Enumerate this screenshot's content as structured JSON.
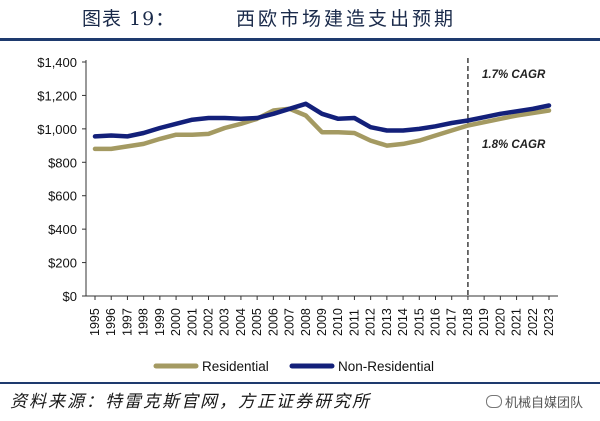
{
  "figure": {
    "number": "图表 19：",
    "title": "西欧市场建造支出预期",
    "source": "资料来源：特雷克斯官网，方正证券研究所",
    "watermark": "机械自媒团队"
  },
  "colors": {
    "residential": "#a49a62",
    "non_residential": "#13207a",
    "rule": "#1e3a6e"
  },
  "chart_data": {
    "type": "line",
    "x": [
      "1995",
      "1996",
      "1997",
      "1998",
      "1999",
      "2000",
      "2001",
      "2002",
      "2003",
      "2004",
      "2005",
      "2006",
      "2007",
      "2008",
      "2009",
      "2010",
      "2011",
      "2012",
      "2013",
      "2014",
      "2015",
      "2016",
      "2017",
      "2018",
      "2019",
      "2020",
      "2021",
      "2022",
      "2023"
    ],
    "series": [
      {
        "name": "Residential",
        "values": [
          880,
          880,
          895,
          910,
          940,
          965,
          965,
          970,
          1005,
          1030,
          1060,
          1110,
          1120,
          1080,
          980,
          980,
          975,
          930,
          900,
          910,
          930,
          960,
          990,
          1020,
          1040,
          1060,
          1080,
          1095,
          1110
        ]
      },
      {
        "name": "Non-Residential",
        "values": [
          955,
          960,
          955,
          975,
          1005,
          1030,
          1055,
          1065,
          1065,
          1060,
          1065,
          1090,
          1120,
          1150,
          1090,
          1060,
          1065,
          1010,
          990,
          990,
          1000,
          1015,
          1035,
          1050,
          1070,
          1090,
          1105,
          1120,
          1140
        ]
      }
    ],
    "y_ticks": [
      "$0",
      "$200",
      "$400",
      "$600",
      "$800",
      "$1,000",
      "$1,200",
      "$1,400"
    ],
    "ylim": [
      0,
      1400
    ],
    "forecast_divider_x": "2018",
    "annotations": [
      {
        "text": "1.7% CAGR"
      },
      {
        "text": "1.8% CAGR"
      }
    ],
    "legend_position": "bottom-center",
    "grid": false
  }
}
